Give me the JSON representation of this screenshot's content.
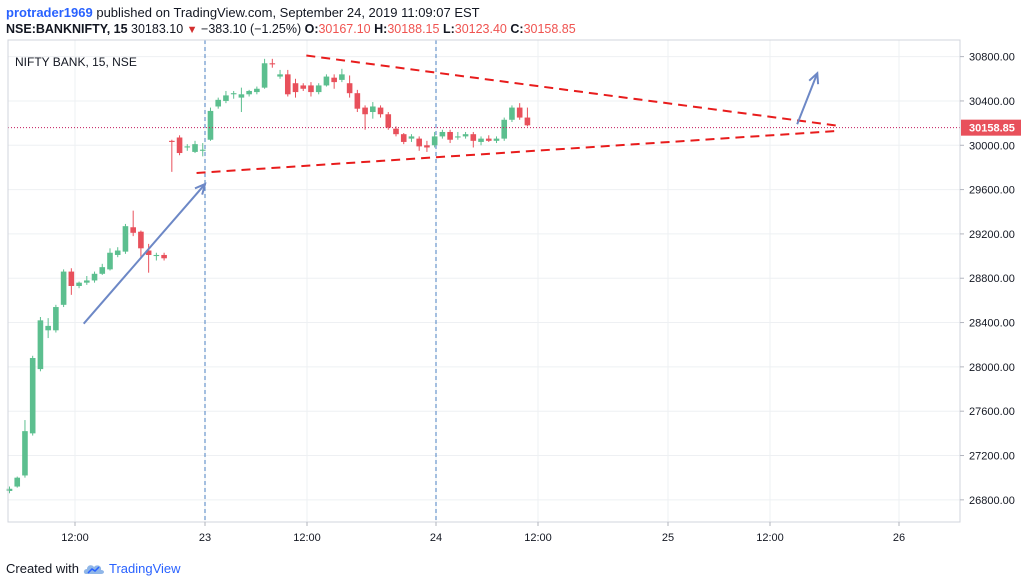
{
  "header": {
    "author": "protrader1969",
    "published_text": "published on TradingView.com, September 24, 2019 11:09:07 EST"
  },
  "quote": {
    "symbol": "NSE:BANKNIFTY, 15",
    "last": "30183.10",
    "change": "−383.10 (−1.25%)",
    "open_label": "O:",
    "open": "30167.10",
    "high_label": "H:",
    "high": "30188.15",
    "low_label": "L:",
    "low": "30123.40",
    "close_label": "C:",
    "close": "30158.85"
  },
  "footer": {
    "created_with": "Created with",
    "brand": "TradingView"
  },
  "colors": {
    "up": "#5cbf8f",
    "down": "#e8505b",
    "trendline": "#e81c1c",
    "arrow": "#6d88c6",
    "session_line": "#4a7fc1",
    "price_line": "#c2185b",
    "grid": "#eef0f3",
    "badge": "#e8505b"
  },
  "chart_data": {
    "type": "candlestick",
    "title": "NIFTY BANK, 15, NSE",
    "ylim": [
      26600,
      30950
    ],
    "y_ticks": [
      26800,
      27200,
      27600,
      28000,
      28400,
      28800,
      29200,
      29600,
      30000,
      30400,
      30800
    ],
    "x_tick_labels": [
      "12:00",
      "23",
      "12:00",
      "24",
      "12:00",
      "25",
      "12:00",
      "26"
    ],
    "current_price": "30158.85",
    "current_price_value": 30158.85,
    "candles": [
      {
        "o": 26880,
        "h": 26920,
        "l": 26860,
        "c": 26900
      },
      {
        "o": 26920,
        "h": 27010,
        "l": 26910,
        "c": 27000
      },
      {
        "o": 27020,
        "h": 27520,
        "l": 27000,
        "c": 27420
      },
      {
        "o": 27400,
        "h": 28100,
        "l": 27380,
        "c": 28080
      },
      {
        "o": 27980,
        "h": 28450,
        "l": 27960,
        "c": 28420
      },
      {
        "o": 28330,
        "h": 28440,
        "l": 28260,
        "c": 28370
      },
      {
        "o": 28330,
        "h": 28560,
        "l": 28310,
        "c": 28540
      },
      {
        "o": 28560,
        "h": 28880,
        "l": 28540,
        "c": 28860
      },
      {
        "o": 28860,
        "h": 28890,
        "l": 28650,
        "c": 28730
      },
      {
        "o": 28730,
        "h": 28770,
        "l": 28710,
        "c": 28760
      },
      {
        "o": 28760,
        "h": 28820,
        "l": 28740,
        "c": 28780
      },
      {
        "o": 28780,
        "h": 28860,
        "l": 28760,
        "c": 28840
      },
      {
        "o": 28840,
        "h": 28930,
        "l": 28830,
        "c": 28900
      },
      {
        "o": 28880,
        "h": 29070,
        "l": 28870,
        "c": 29030
      },
      {
        "o": 29010,
        "h": 29080,
        "l": 28990,
        "c": 29050
      },
      {
        "o": 29040,
        "h": 29290,
        "l": 29020,
        "c": 29270
      },
      {
        "o": 29260,
        "h": 29410,
        "l": 29180,
        "c": 29210
      },
      {
        "o": 29220,
        "h": 29230,
        "l": 28990,
        "c": 29070
      },
      {
        "o": 29050,
        "h": 29110,
        "l": 28850,
        "c": 29010
      },
      {
        "o": 29000,
        "h": 29030,
        "l": 28960,
        "c": 29010
      },
      {
        "o": 29010,
        "h": 29030,
        "l": 28960,
        "c": 28980
      },
      {
        "o": 30040,
        "h": 30050,
        "l": 29760,
        "c": 30030
      },
      {
        "o": 30070,
        "h": 30090,
        "l": 29910,
        "c": 29930
      },
      {
        "o": 29980,
        "h": 30010,
        "l": 29950,
        "c": 29990
      },
      {
        "o": 29940,
        "h": 30040,
        "l": 29930,
        "c": 30010
      },
      {
        "o": 29950,
        "h": 30020,
        "l": 29900,
        "c": 29960
      },
      {
        "o": 30050,
        "h": 30340,
        "l": 30040,
        "c": 30310
      },
      {
        "o": 30350,
        "h": 30430,
        "l": 30330,
        "c": 30410
      },
      {
        "o": 30400,
        "h": 30490,
        "l": 30380,
        "c": 30450
      },
      {
        "o": 30460,
        "h": 30490,
        "l": 30420,
        "c": 30470
      },
      {
        "o": 30430,
        "h": 30520,
        "l": 30300,
        "c": 30460
      },
      {
        "o": 30460,
        "h": 30500,
        "l": 30440,
        "c": 30490
      },
      {
        "o": 30480,
        "h": 30530,
        "l": 30460,
        "c": 30510
      },
      {
        "o": 30520,
        "h": 30780,
        "l": 30510,
        "c": 30740
      },
      {
        "o": 30740,
        "h": 30780,
        "l": 30700,
        "c": 30730
      },
      {
        "o": 30620,
        "h": 30680,
        "l": 30600,
        "c": 30640
      },
      {
        "o": 30640,
        "h": 30680,
        "l": 30440,
        "c": 30460
      },
      {
        "o": 30560,
        "h": 30600,
        "l": 30430,
        "c": 30480
      },
      {
        "o": 30540,
        "h": 30560,
        "l": 30490,
        "c": 30510
      },
      {
        "o": 30540,
        "h": 30570,
        "l": 30440,
        "c": 30480
      },
      {
        "o": 30480,
        "h": 30560,
        "l": 30460,
        "c": 30540
      },
      {
        "o": 30540,
        "h": 30640,
        "l": 30530,
        "c": 30620
      },
      {
        "o": 30610,
        "h": 30640,
        "l": 30510,
        "c": 30570
      },
      {
        "o": 30590,
        "h": 30690,
        "l": 30570,
        "c": 30640
      },
      {
        "o": 30560,
        "h": 30630,
        "l": 30430,
        "c": 30470
      },
      {
        "o": 30470,
        "h": 30500,
        "l": 30300,
        "c": 30330
      },
      {
        "o": 30340,
        "h": 30360,
        "l": 30140,
        "c": 30280
      },
      {
        "o": 30300,
        "h": 30390,
        "l": 30240,
        "c": 30350
      },
      {
        "o": 30340,
        "h": 30360,
        "l": 30250,
        "c": 30280
      },
      {
        "o": 30280,
        "h": 30300,
        "l": 30140,
        "c": 30160
      },
      {
        "o": 30150,
        "h": 30170,
        "l": 30080,
        "c": 30100
      },
      {
        "o": 30100,
        "h": 30110,
        "l": 30010,
        "c": 30030
      },
      {
        "o": 30060,
        "h": 30100,
        "l": 30030,
        "c": 30080
      },
      {
        "o": 30060,
        "h": 30080,
        "l": 29950,
        "c": 29990
      },
      {
        "o": 30000,
        "h": 30040,
        "l": 29940,
        "c": 29980
      },
      {
        "o": 30000,
        "h": 30120,
        "l": 29980,
        "c": 30080
      },
      {
        "o": 30080,
        "h": 30140,
        "l": 30060,
        "c": 30120
      },
      {
        "o": 30120,
        "h": 30140,
        "l": 30020,
        "c": 30050
      },
      {
        "o": 30070,
        "h": 30120,
        "l": 30050,
        "c": 30080
      },
      {
        "o": 30080,
        "h": 30120,
        "l": 30060,
        "c": 30100
      },
      {
        "o": 30100,
        "h": 30120,
        "l": 29980,
        "c": 30040
      },
      {
        "o": 30030,
        "h": 30080,
        "l": 30000,
        "c": 30060
      },
      {
        "o": 30060,
        "h": 30090,
        "l": 30030,
        "c": 30040
      },
      {
        "o": 30040,
        "h": 30080,
        "l": 30020,
        "c": 30060
      },
      {
        "o": 30060,
        "h": 30250,
        "l": 30040,
        "c": 30230
      },
      {
        "o": 30230,
        "h": 30360,
        "l": 30210,
        "c": 30340
      },
      {
        "o": 30340,
        "h": 30380,
        "l": 30230,
        "c": 30250
      },
      {
        "o": 30250,
        "h": 30340,
        "l": 30170,
        "c": 30180
      }
    ]
  }
}
